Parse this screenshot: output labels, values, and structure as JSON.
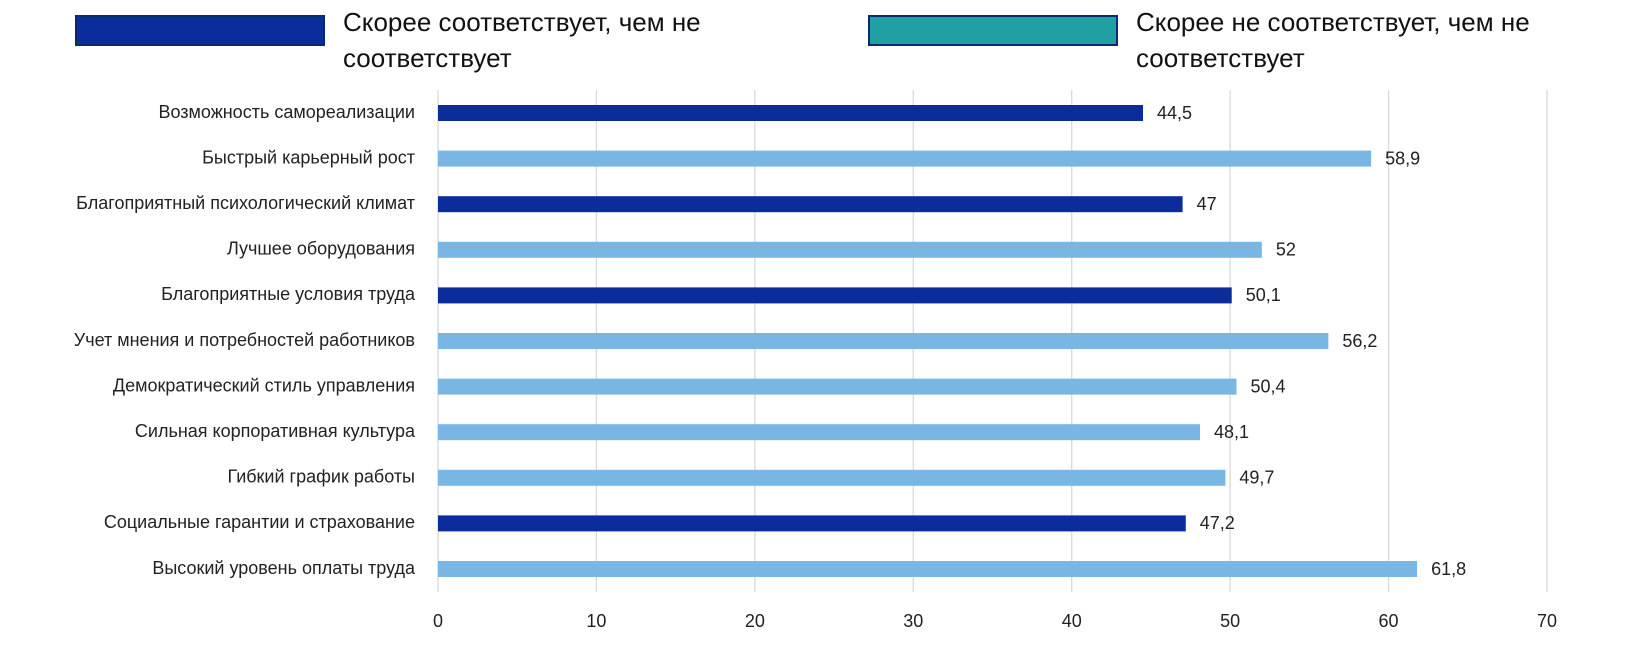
{
  "chart_data": {
    "type": "barh",
    "legend": [
      {
        "name": "Скорее соответствует, чем не соответствует",
        "color": "#0b2d9b"
      },
      {
        "name": "Скорее не соответствует, чем не соответствует",
        "color": "#20a0a2"
      }
    ],
    "categories": [
      "Возможность самореализации",
      "Быстрый карьерный рост",
      "Благоприятный психологический климат",
      "Лучшее оборудования",
      "Благоприятные условия труда",
      "Учет мнения и потребностей работников",
      "Демократический стиль управления",
      "Сильная корпоративная культура",
      "Гибкий график работы",
      "Социальные гарантии и страхование",
      "Высокий уровень оплаты труда"
    ],
    "values": [
      44.5,
      58.9,
      47,
      52,
      50.1,
      56.2,
      50.4,
      48.1,
      49.7,
      47.2,
      61.8
    ],
    "value_labels": [
      "44,5",
      "58,9",
      "47",
      "52",
      "50,1",
      "56,2",
      "50,4",
      "48,1",
      "49,7",
      "47,2",
      "61,8"
    ],
    "colors": [
      "#0b2d9b",
      "#7ab6e4",
      "#0b2d9b",
      "#7ab6e4",
      "#0b2d9b",
      "#7ab6e4",
      "#7ab6e4",
      "#7ab6e4",
      "#7ab6e4",
      "#0b2d9b",
      "#7ab6e4"
    ],
    "xlim": [
      0,
      70
    ],
    "xticks": [
      0,
      10,
      20,
      30,
      40,
      50,
      60,
      70
    ],
    "grid": true
  }
}
